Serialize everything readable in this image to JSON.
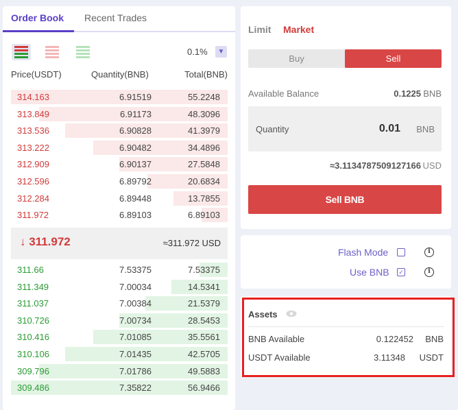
{
  "tabs": {
    "order_book": "Order Book",
    "recent_trades": "Recent Trades"
  },
  "precision": "0.1%",
  "columns": {
    "price": "Price(USDT)",
    "quantity": "Quantity(BNB)",
    "total": "Total(BNB)"
  },
  "asks": [
    {
      "price": "314.163",
      "qty": "6.91519",
      "total": "55.2248",
      "depth": 1.0
    },
    {
      "price": "313.849",
      "qty": "6.91173",
      "total": "48.3096",
      "depth": 0.87
    },
    {
      "price": "313.536",
      "qty": "6.90828",
      "total": "41.3979",
      "depth": 0.75
    },
    {
      "price": "313.222",
      "qty": "6.90482",
      "total": "34.4896",
      "depth": 0.62
    },
    {
      "price": "312.909",
      "qty": "6.90137",
      "total": "27.5848",
      "depth": 0.5
    },
    {
      "price": "312.596",
      "qty": "6.89792",
      "total": "20.6834",
      "depth": 0.37
    },
    {
      "price": "312.284",
      "qty": "6.89448",
      "total": "13.7855",
      "depth": 0.25
    },
    {
      "price": "311.972",
      "qty": "6.89103",
      "total": "6.89103",
      "depth": 0.12
    }
  ],
  "mid": {
    "price": "311.972",
    "usd": "≈311.972 USD",
    "arrow": "↓"
  },
  "bids": [
    {
      "price": "311.66",
      "qty": "7.53375",
      "total": "7.53375",
      "depth": 0.13
    },
    {
      "price": "311.349",
      "qty": "7.00034",
      "total": "14.5341",
      "depth": 0.26
    },
    {
      "price": "311.037",
      "qty": "7.00384",
      "total": "21.5379",
      "depth": 0.38
    },
    {
      "price": "310.726",
      "qty": "7.00734",
      "total": "28.5453",
      "depth": 0.5
    },
    {
      "price": "310.416",
      "qty": "7.01085",
      "total": "35.5561",
      "depth": 0.62
    },
    {
      "price": "310.106",
      "qty": "7.01435",
      "total": "42.5705",
      "depth": 0.75
    },
    {
      "price": "309.796",
      "qty": "7.01786",
      "total": "49.5883",
      "depth": 0.87
    },
    {
      "price": "309.486",
      "qty": "7.35822",
      "total": "56.9466",
      "depth": 1.0
    }
  ],
  "trade": {
    "limit": "Limit",
    "market": "Market",
    "buy": "Buy",
    "sell": "Sell",
    "available_label": "Available Balance",
    "available_value": "0.1225",
    "available_unit": "BNB",
    "quantity_label": "Quantity",
    "quantity_value": "0.01",
    "quantity_unit": "BNB",
    "estimate_value": "≈3.1134787509127166",
    "estimate_unit": "USD",
    "submit": "Sell BNB"
  },
  "options": {
    "flash_mode": "Flash Mode",
    "flash_checked": false,
    "use_bnb": "Use BNB",
    "use_bnb_checked": true
  },
  "assets": {
    "title": "Assets",
    "rows": [
      {
        "label": "BNB Available",
        "value": "0.122452",
        "unit": "BNB"
      },
      {
        "label": "USDT Available",
        "value": "3.11348",
        "unit": "USDT"
      }
    ]
  },
  "colors": {
    "accent": "#5a3fc8",
    "sell": "#d94646",
    "ask_text": "#d23a3a",
    "bid_text": "#2a9b34",
    "highlight": "#e82020"
  }
}
